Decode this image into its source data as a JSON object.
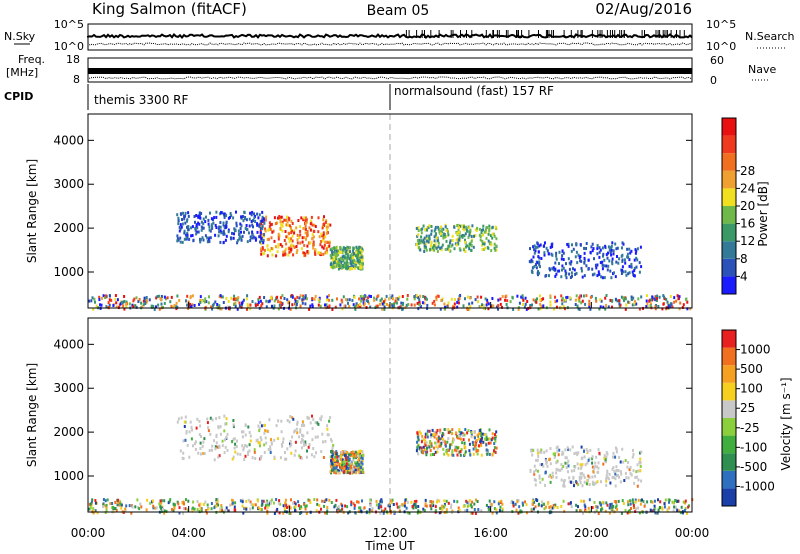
{
  "header": {
    "station": "King Salmon (fitACF)",
    "beam": "Beam 05",
    "date": "02/Aug/2016"
  },
  "status_panel": {
    "nsky_label": "N.Sky",
    "nsearch_label": "N.Search",
    "freq_label": "Freq.",
    "freq_unit": "[MHz]",
    "nave_label": "Nave",
    "cpid_label": "CPID",
    "nsky_ticks": [
      "10^5",
      "10^0"
    ],
    "nsearch_ticks": [
      "10^5",
      "10^0"
    ],
    "freq_ticks": [
      "18",
      "8"
    ],
    "nave_ticks": [
      "60",
      "0"
    ],
    "cpid_segments": [
      {
        "label": "themis 3300 RF",
        "start": 0,
        "end": 12
      },
      {
        "label": "normalsound (fast) 157 RF",
        "start": 12,
        "end": 24
      }
    ]
  },
  "chart_data": [
    {
      "type": "heatmap",
      "name": "power",
      "ylabel": "Slant Range [km]",
      "ylim": [
        180,
        4600
      ],
      "yticks": [
        1000,
        2000,
        3000,
        4000
      ],
      "xlim": [
        0,
        24
      ],
      "colorbar": {
        "label": "Power [dB]",
        "ticks": [
          "4",
          "8",
          "12",
          "16",
          "20",
          "24",
          "28"
        ],
        "colors": [
          "#1b1bff",
          "#2a52b8",
          "#337a99",
          "#3a9966",
          "#6fb84a",
          "#f0e020",
          "#f0a030",
          "#f07020",
          "#f03a20",
          "#e81010"
        ]
      },
      "regions": [
        {
          "t": [
            6.8,
            9.6
          ],
          "r": [
            1400,
            2300
          ],
          "level": "high"
        },
        {
          "t": [
            3.5,
            7.0
          ],
          "r": [
            1700,
            2400
          ],
          "level": "low"
        },
        {
          "t": [
            9.6,
            10.9
          ],
          "r": [
            1100,
            1600
          ],
          "level": "mid"
        },
        {
          "t": [
            13.0,
            16.2
          ],
          "r": [
            1500,
            2100
          ],
          "level": "mid"
        },
        {
          "t": [
            17.5,
            22.0
          ],
          "r": [
            900,
            1700
          ],
          "level": "low"
        },
        {
          "t": [
            0,
            24
          ],
          "r": [
            180,
            500
          ],
          "level": "mixed"
        }
      ]
    },
    {
      "type": "heatmap",
      "name": "velocity",
      "ylabel": "Slant Range [km]",
      "ylim": [
        180,
        4600
      ],
      "yticks": [
        1000,
        2000,
        3000,
        4000
      ],
      "xlim": [
        0,
        24
      ],
      "xlabel": "Time UT",
      "xticks": [
        "00:00",
        "04:00",
        "08:00",
        "12:00",
        "16:00",
        "20:00",
        "00:00"
      ],
      "colorbar": {
        "label": "Velocity [m s⁻¹]",
        "ticks": [
          "1000",
          "500",
          "100",
          "25",
          "-25",
          "-100",
          "-500",
          "-1000"
        ],
        "colors": [
          "#1a3fa8",
          "#2f6fc0",
          "#2f8f50",
          "#3fae3f",
          "#8ccf3c",
          "#c8c8c8",
          "#f5d020",
          "#f5a020",
          "#f07020",
          "#e82020"
        ]
      },
      "regions": [
        {
          "t": [
            3.5,
            9.8
          ],
          "r": [
            1400,
            2400
          ],
          "level": "gray"
        },
        {
          "t": [
            9.6,
            10.9
          ],
          "r": [
            1100,
            1600
          ],
          "level": "mixed"
        },
        {
          "t": [
            13.0,
            16.2
          ],
          "r": [
            1500,
            2100
          ],
          "level": "mixed"
        },
        {
          "t": [
            17.5,
            22.0
          ],
          "r": [
            800,
            1700
          ],
          "level": "gray"
        },
        {
          "t": [
            0,
            24
          ],
          "r": [
            180,
            500
          ],
          "level": "mixed"
        }
      ]
    }
  ]
}
